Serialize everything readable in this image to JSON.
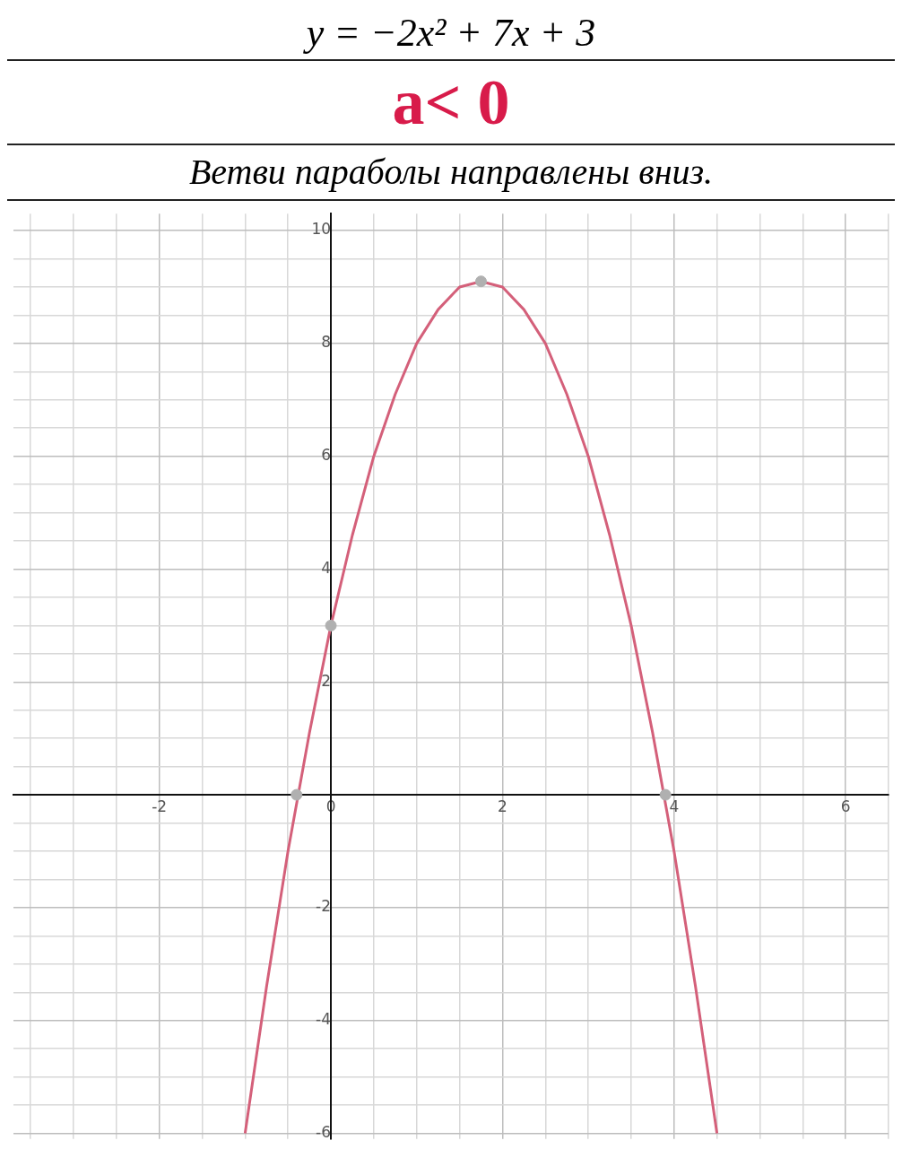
{
  "chart_data": {
    "type": "line",
    "title": "y = −2x² + 7x + 3",
    "subtitle": "a< 0",
    "annotations": [
      "Ветви параболы направлены вниз."
    ],
    "xlim": [
      -3.7,
      6.5
    ],
    "ylim": [
      -6.1,
      10.3
    ],
    "xticks": [
      {
        "value": -3.5,
        "label": null
      },
      {
        "value": -3,
        "label": null
      },
      {
        "value": -2.5,
        "label": null
      },
      -2,
      {
        "value": -1.5,
        "label": null
      },
      {
        "value": -1,
        "label": null
      },
      {
        "value": -0.5,
        "label": null
      },
      0,
      {
        "value": 0.5,
        "label": null
      },
      {
        "value": 1,
        "label": null
      },
      {
        "value": 1.5,
        "label": null
      },
      2,
      {
        "value": 2.5,
        "label": null
      },
      {
        "value": 3,
        "label": null
      },
      {
        "value": 3.5,
        "label": null
      },
      4,
      {
        "value": 4.5,
        "label": null
      },
      {
        "value": 5,
        "label": null
      },
      {
        "value": 5.5,
        "label": null
      },
      6,
      {
        "value": 6.5,
        "label": null
      }
    ],
    "yticks": [
      -6,
      {
        "value": -5.5,
        "label": null
      },
      {
        "value": -5,
        "label": null
      },
      {
        "value": -4.5,
        "label": null
      },
      -4,
      {
        "value": -3.5,
        "label": null
      },
      {
        "value": -3,
        "label": null
      },
      {
        "value": -2.5,
        "label": null
      },
      -2,
      {
        "value": -1.5,
        "label": null
      },
      {
        "value": -1,
        "label": null
      },
      {
        "value": -0.5,
        "label": null
      },
      {
        "value": 0,
        "label": null
      },
      {
        "value": 0.5,
        "label": null
      },
      {
        "value": 1,
        "label": null
      },
      {
        "value": 1.5,
        "label": null
      },
      2,
      {
        "value": 2.5,
        "label": null
      },
      {
        "value": 3,
        "label": null
      },
      {
        "value": 3.5,
        "label": null
      },
      4,
      {
        "value": 4.5,
        "label": null
      },
      {
        "value": 5,
        "label": null
      },
      {
        "value": 5.5,
        "label": null
      },
      6,
      {
        "value": 6.5,
        "label": null
      },
      {
        "value": 7,
        "label": null
      },
      {
        "value": 7.5,
        "label": null
      },
      8,
      {
        "value": 8.5,
        "label": null
      },
      {
        "value": 9,
        "label": null
      },
      {
        "value": 9.5,
        "label": null
      },
      10
    ],
    "grid": true,
    "series": [
      {
        "type": "line",
        "color": "#d4607a",
        "marker": "none",
        "x": [
          -1,
          -0.75,
          -0.5,
          -0.25,
          0,
          0.25,
          0.5,
          0.75,
          1,
          1.25,
          1.5,
          1.75,
          2,
          2.25,
          2.5,
          2.75,
          3,
          3.25,
          3.5,
          3.75,
          4,
          4.25,
          4.5
        ],
        "values": [
          -6,
          -3.4,
          -1,
          1.1,
          3,
          4.6,
          6,
          7.1,
          8,
          8.6,
          9,
          9.1,
          9,
          8.6,
          8,
          7.1,
          6,
          4.6,
          3,
          1.1,
          -1,
          -3.4,
          -6
        ]
      },
      {
        "type": "scatter",
        "color": "#b0b0b0",
        "marker": "circle",
        "x": [
          -0.4,
          0,
          1.75,
          3.9
        ],
        "values": [
          0,
          3,
          9.1,
          0
        ]
      }
    ]
  }
}
